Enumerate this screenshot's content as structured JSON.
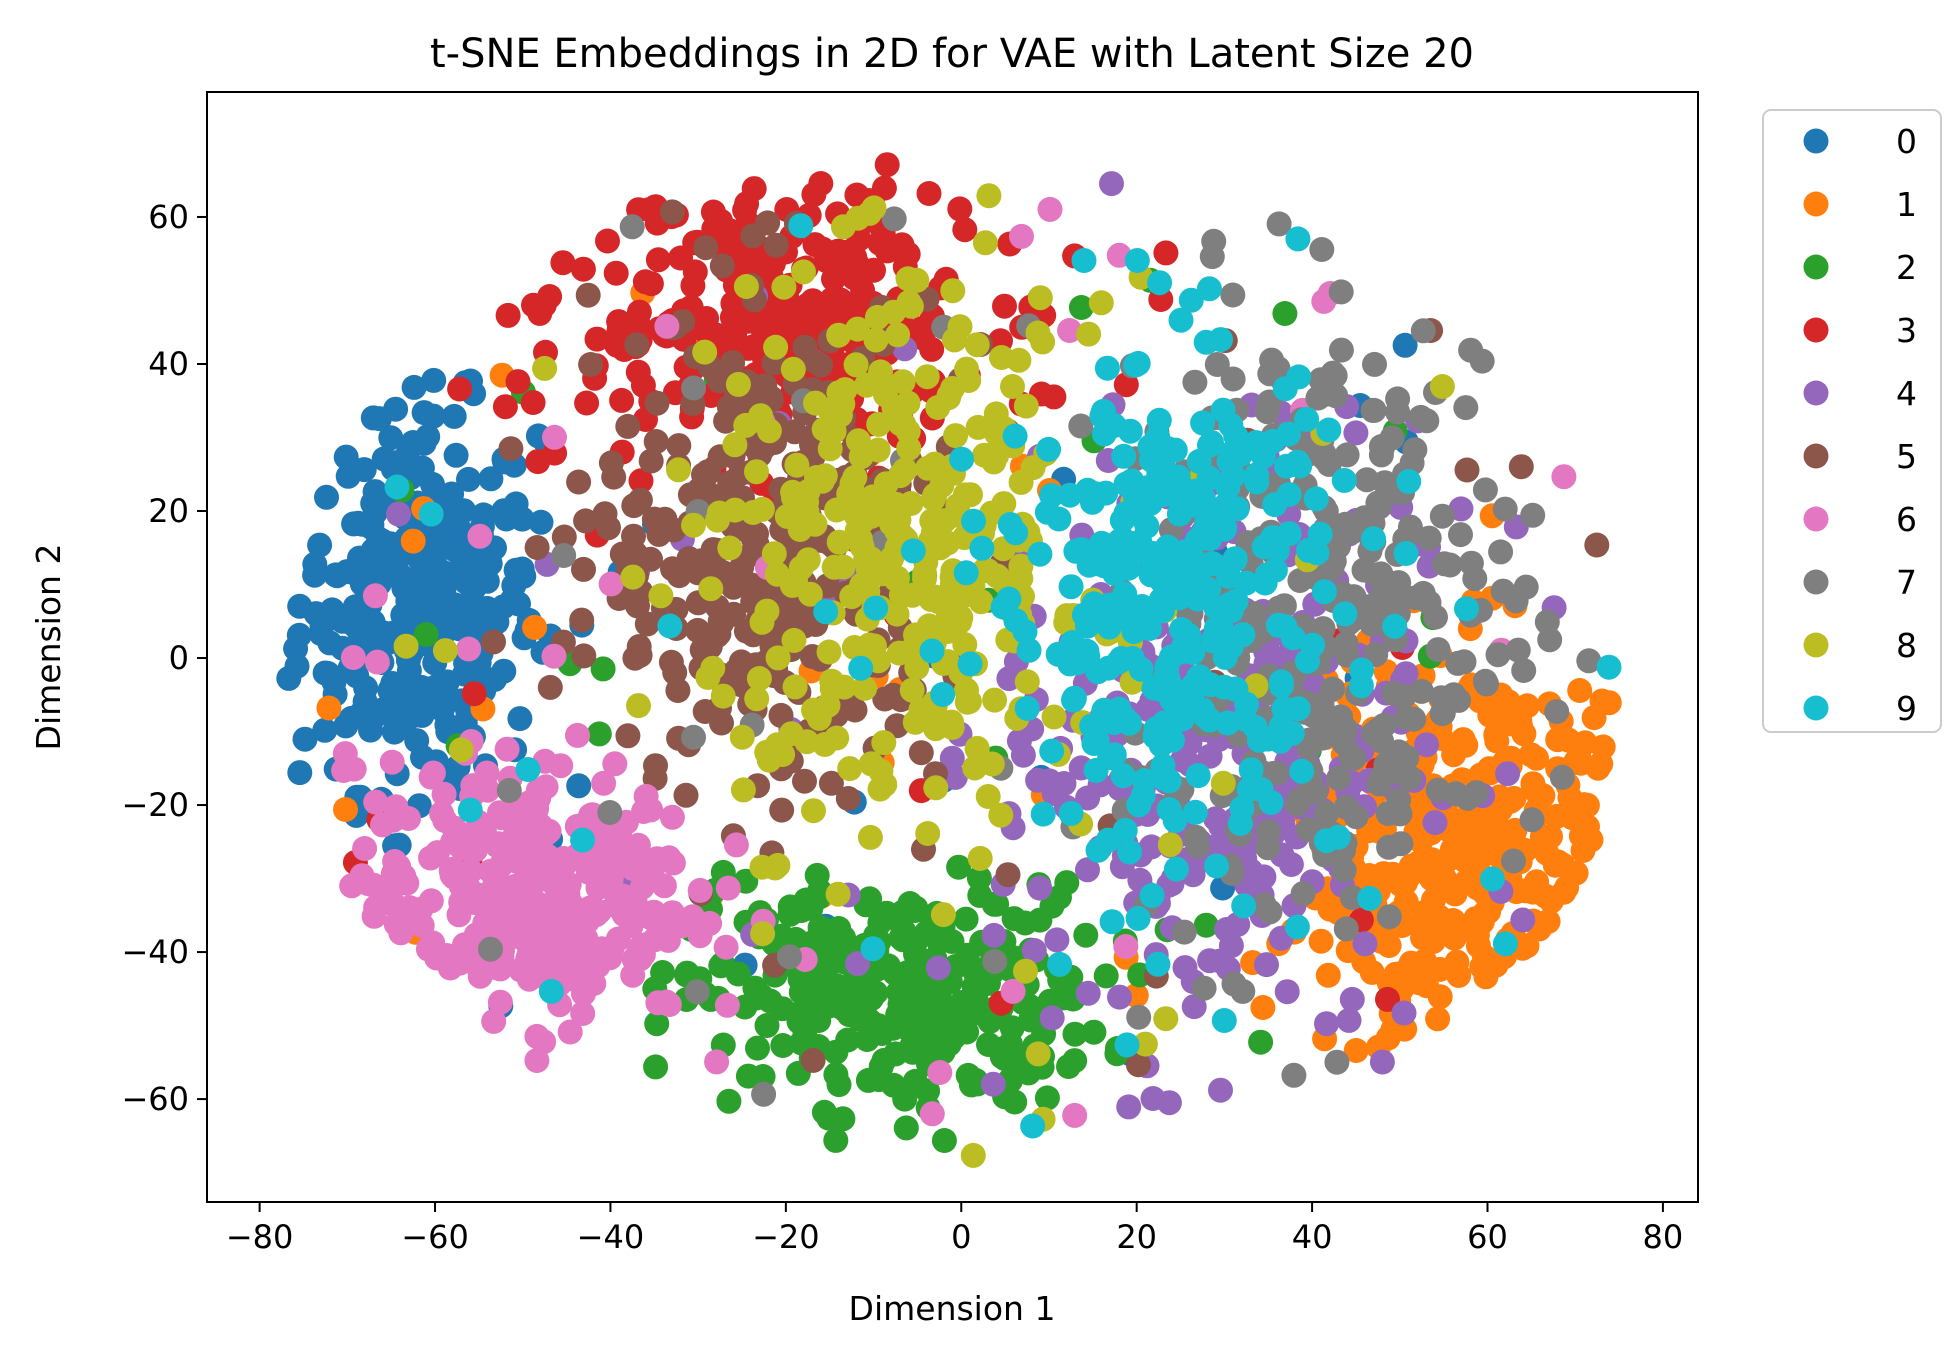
{
  "chart_data": {
    "type": "scatter",
    "title": "t-SNE Embeddings in 2D for VAE with Latent Size 20",
    "xlabel": "Dimension 1",
    "ylabel": "Dimension 2",
    "xlim": [
      -86,
      84
    ],
    "ylim": [
      -74,
      77
    ],
    "xticks": [
      -80,
      -60,
      -40,
      -20,
      0,
      20,
      40,
      60,
      80
    ],
    "yticks": [
      -60,
      -40,
      -20,
      0,
      20,
      40,
      60
    ],
    "grid": false,
    "legend_position": "outside-right",
    "point_count_per_series": 320,
    "series": [
      {
        "name": "0",
        "color": "#1f77b4",
        "center": [
          -62,
          8
        ],
        "spread": [
          9,
          17
        ]
      },
      {
        "name": "1",
        "color": "#ff7f0e",
        "center": [
          58,
          -28
        ],
        "spread": [
          13,
          20
        ]
      },
      {
        "name": "2",
        "color": "#2ca02c",
        "center": [
          -8,
          -46
        ],
        "spread": [
          16,
          10
        ]
      },
      {
        "name": "3",
        "color": "#d62728",
        "center": [
          -22,
          46
        ],
        "spread": [
          16,
          12
        ]
      },
      {
        "name": "4",
        "color": "#9467bd",
        "center": [
          28,
          -10
        ],
        "spread": [
          16,
          28
        ]
      },
      {
        "name": "5",
        "color": "#8c564b",
        "center": [
          -22,
          14
        ],
        "spread": [
          13,
          22
        ]
      },
      {
        "name": "6",
        "color": "#e377c2",
        "center": [
          -50,
          -32
        ],
        "spread": [
          13,
          12
        ]
      },
      {
        "name": "7",
        "color": "#7f7f7f",
        "center": [
          42,
          5
        ],
        "spread": [
          16,
          28
        ]
      },
      {
        "name": "8",
        "color": "#bcbd22",
        "center": [
          -6,
          14
        ],
        "spread": [
          15,
          24
        ]
      },
      {
        "name": "9",
        "color": "#17becf",
        "center": [
          24,
          8
        ],
        "spread": [
          13,
          24
        ]
      }
    ]
  }
}
